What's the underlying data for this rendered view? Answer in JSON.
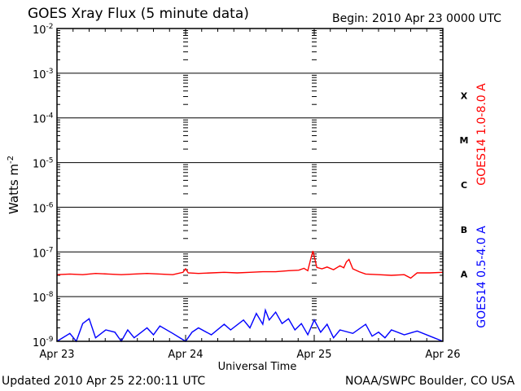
{
  "chart_data": {
    "type": "line",
    "title": "GOES Xray Flux (5 minute data)",
    "begin_label": "Begin:  2010 Apr 23 0000 UTC",
    "ylabel": "Watts m",
    "ylabel_sup": "-2",
    "xlabel": "Universal Time",
    "yscale": "log",
    "ylim": [
      1e-09,
      0.01
    ],
    "y_ticks": [
      {
        "base": "10",
        "exp": "-2",
        "value": 0.01
      },
      {
        "base": "10",
        "exp": "-3",
        "value": 0.001
      },
      {
        "base": "10",
        "exp": "-4",
        "value": 0.0001
      },
      {
        "base": "10",
        "exp": "-5",
        "value": 1e-05
      },
      {
        "base": "10",
        "exp": "-6",
        "value": 1e-06
      },
      {
        "base": "10",
        "exp": "-7",
        "value": 1e-07
      },
      {
        "base": "10",
        "exp": "-8",
        "value": 1e-08
      },
      {
        "base": "10",
        "exp": "-9",
        "value": 1e-09
      }
    ],
    "x_ticks": [
      {
        "label": "Apr 23",
        "day": 0
      },
      {
        "label": "Apr 24",
        "day": 1
      },
      {
        "label": "Apr 25",
        "day": 2
      },
      {
        "label": "Apr 26",
        "day": 3
      }
    ],
    "xlim_days": [
      0,
      3
    ],
    "flare_classes": [
      {
        "label": "X",
        "value": 0.000316
      },
      {
        "label": "M",
        "value": 3.16e-05
      },
      {
        "label": "C",
        "value": 3.16e-06
      },
      {
        "label": "B",
        "value": 3.16e-07
      },
      {
        "label": "A",
        "value": 3.16e-08
      }
    ],
    "series": [
      {
        "name": "GOES14 1.0-8.0 A",
        "color": "#ff0000",
        "x_days": [
          0,
          0.1,
          0.2,
          0.3,
          0.4,
          0.5,
          0.6,
          0.7,
          0.8,
          0.9,
          0.98,
          1.0,
          1.02,
          1.1,
          1.2,
          1.3,
          1.4,
          1.5,
          1.6,
          1.7,
          1.8,
          1.88,
          1.92,
          1.95,
          1.97,
          1.99,
          2.02,
          2.06,
          2.1,
          2.15,
          2.2,
          2.23,
          2.25,
          2.27,
          2.3,
          2.35,
          2.4,
          2.5,
          2.6,
          2.7,
          2.75,
          2.8,
          2.9,
          3.0
        ],
        "values": [
          3.1e-08,
          3.2e-08,
          3.1e-08,
          3.3e-08,
          3.2e-08,
          3.1e-08,
          3.2e-08,
          3.3e-08,
          3.2e-08,
          3.1e-08,
          3.5e-08,
          4.2e-08,
          3.4e-08,
          3.3e-08,
          3.4e-08,
          3.5e-08,
          3.4e-08,
          3.5e-08,
          3.6e-08,
          3.6e-08,
          3.8e-08,
          3.9e-08,
          4.3e-08,
          3.8e-08,
          6.5e-08,
          1.05e-07,
          4.5e-08,
          4.2e-08,
          4.6e-08,
          4e-08,
          4.9e-08,
          4.4e-08,
          6e-08,
          6.8e-08,
          4.2e-08,
          3.6e-08,
          3.2e-08,
          3.1e-08,
          3e-08,
          3.1e-08,
          2.6e-08,
          3.4e-08,
          3.4e-08,
          3.5e-08
        ]
      },
      {
        "name": "GOES14 0.5-4.0 A",
        "color": "#0000ff",
        "x_days": [
          0,
          0.1,
          0.15,
          0.2,
          0.25,
          0.3,
          0.38,
          0.45,
          0.5,
          0.55,
          0.6,
          0.7,
          0.75,
          0.8,
          0.9,
          1.0,
          1.05,
          1.1,
          1.2,
          1.3,
          1.35,
          1.45,
          1.5,
          1.55,
          1.6,
          1.62,
          1.65,
          1.7,
          1.75,
          1.8,
          1.85,
          1.9,
          1.95,
          2.0,
          2.05,
          2.1,
          2.15,
          2.2,
          2.3,
          2.4,
          2.45,
          2.5,
          2.55,
          2.6,
          2.7,
          2.8,
          2.9,
          3.0
        ],
        "values": [
          1e-09,
          1.5e-09,
          1e-09,
          2.5e-09,
          3.2e-09,
          1.2e-09,
          1.8e-09,
          1.6e-09,
          1e-09,
          1.8e-09,
          1.2e-09,
          2e-09,
          1.4e-09,
          2.2e-09,
          1.5e-09,
          1e-09,
          1.6e-09,
          2e-09,
          1.4e-09,
          2.4e-09,
          1.8e-09,
          3e-09,
          2e-09,
          4.2e-09,
          2.4e-09,
          5e-09,
          3e-09,
          4.5e-09,
          2.5e-09,
          3.2e-09,
          1.8e-09,
          2.5e-09,
          1.4e-09,
          3e-09,
          1.6e-09,
          2.4e-09,
          1.2e-09,
          1.8e-09,
          1.5e-09,
          2.4e-09,
          1.3e-09,
          1.6e-09,
          1.2e-09,
          1.8e-09,
          1.4e-09,
          1.7e-09,
          1.3e-09,
          1e-09
        ]
      }
    ]
  },
  "footer": {
    "updated": "Updated 2010 Apr 25 22:00:11 UTC",
    "credit": "NOAA/SWPC Boulder, CO USA"
  }
}
